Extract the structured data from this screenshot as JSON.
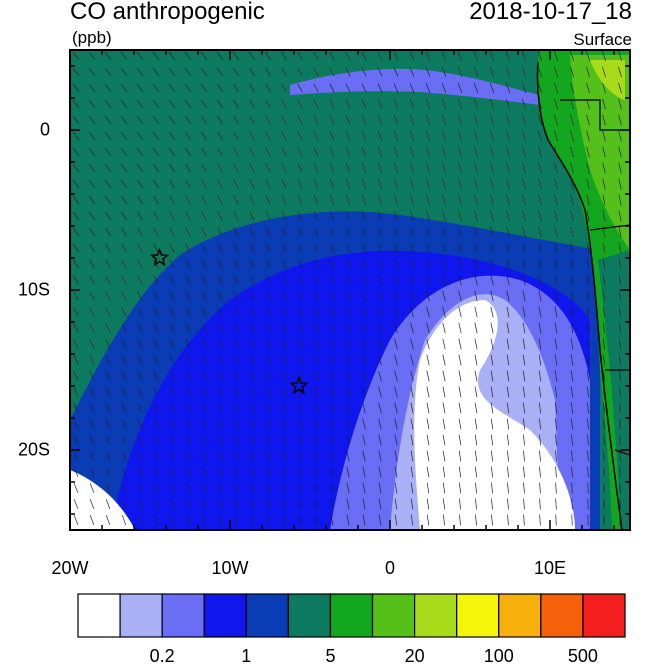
{
  "header": {
    "title": "CO anthropogenic",
    "units": "(ppb)",
    "datetime": "2018-10-17_18",
    "level": "Surface"
  },
  "axes": {
    "x_ticks": [
      "20W",
      "10W",
      "0",
      "10E"
    ],
    "y_ticks": [
      "0",
      "10S",
      "20S"
    ]
  },
  "colorbar": {
    "colors": [
      "#ffffff",
      "#aab0f5",
      "#6a6ef5",
      "#1016ee",
      "#0a3db5",
      "#0b7a5f",
      "#12a71e",
      "#55c01a",
      "#a8dc1a",
      "#f5f50a",
      "#f5b00a",
      "#f5600a",
      "#f51e1e"
    ],
    "labels": [
      "0.2",
      "1",
      "5",
      "20",
      "100",
      "500"
    ]
  },
  "markers": [
    {
      "name": "site-star-west",
      "lon": -14.4,
      "lat": -8.0
    },
    {
      "name": "site-star-east",
      "lon": -5.7,
      "lat": -16.0
    }
  ]
}
